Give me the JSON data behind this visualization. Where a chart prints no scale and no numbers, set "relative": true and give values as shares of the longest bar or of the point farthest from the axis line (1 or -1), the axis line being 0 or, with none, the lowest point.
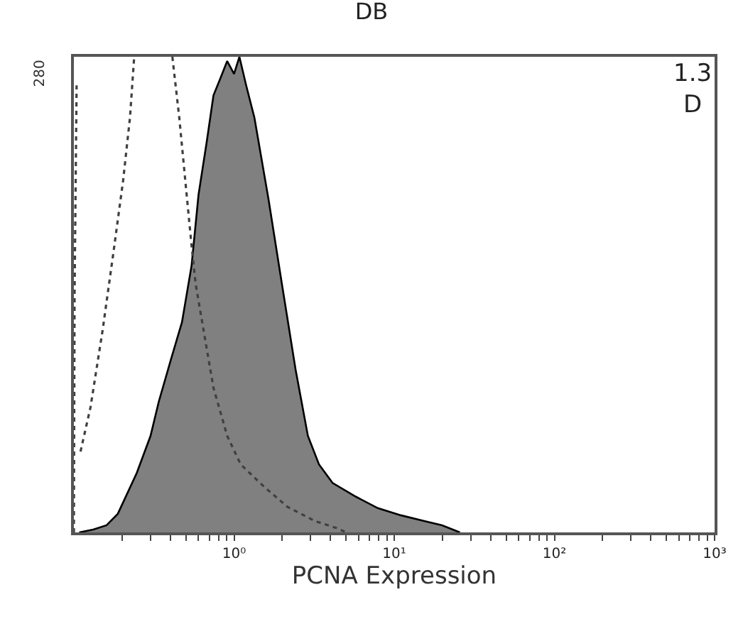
{
  "chart_data": {
    "type": "area",
    "title": "DB",
    "xlabel": "PCNA Expression",
    "relative": true,
    "log": "x",
    "annotations": [
      "280",
      "1.3\nD"
    ],
    "xlim": [
      0.1,
      1000
    ],
    "xticks": [
      {
        "value": 0.2,
        "label": null
      },
      {
        "value": 0.3,
        "label": null
      },
      {
        "value": 0.4,
        "label": null
      },
      {
        "value": 0.5,
        "label": null
      },
      {
        "value": 0.6,
        "label": null
      },
      {
        "value": 0.7,
        "label": null
      },
      {
        "value": 0.8,
        "label": null
      },
      {
        "value": 0.9,
        "label": null
      },
      {
        "value": 1,
        "label": "10⁰"
      },
      {
        "value": 2,
        "label": null
      },
      {
        "value": 3,
        "label": null
      },
      {
        "value": 4,
        "label": null
      },
      {
        "value": 5,
        "label": null
      },
      {
        "value": 6,
        "label": null
      },
      {
        "value": 7,
        "label": null
      },
      {
        "value": 8,
        "label": null
      },
      {
        "value": 9,
        "label": null
      },
      {
        "value": 10,
        "label": "10¹"
      },
      {
        "value": 20,
        "label": null
      },
      {
        "value": 30,
        "label": null
      },
      {
        "value": 40,
        "label": null
      },
      {
        "value": 50,
        "label": null
      },
      {
        "value": 60,
        "label": null
      },
      {
        "value": 70,
        "label": null
      },
      {
        "value": 80,
        "label": null
      },
      {
        "value": 90,
        "label": null
      },
      {
        "value": 100,
        "label": "10²"
      },
      {
        "value": 200,
        "label": null
      },
      {
        "value": 300,
        "label": null
      },
      {
        "value": 400,
        "label": null
      },
      {
        "value": 500,
        "label": null
      },
      {
        "value": 600,
        "label": null
      },
      {
        "value": 700,
        "label": null
      },
      {
        "value": 800,
        "label": null
      },
      {
        "value": 900,
        "label": null
      },
      {
        "value": 1000,
        "label": "10³"
      }
    ],
    "series": [
      {
        "color": "#808080",
        "x": [
          0.108,
          0.132,
          0.16,
          0.188,
          0.247,
          0.301,
          0.339,
          0.404,
          0.473,
          0.543,
          0.6,
          0.675,
          0.744,
          0.822,
          0.906,
          1.0,
          1.08,
          1.19,
          1.34,
          1.64,
          1.99,
          2.42,
          2.89,
          3.39,
          4.12,
          5.77,
          7.9,
          11.0,
          15.4,
          19.9,
          25.7
        ],
        "values": [
          0,
          0.006,
          0.015,
          0.039,
          0.125,
          0.203,
          0.275,
          0.364,
          0.442,
          0.561,
          0.71,
          0.821,
          0.919,
          0.955,
          0.991,
          0.964,
          1.0,
          0.94,
          0.872,
          0.701,
          0.522,
          0.343,
          0.203,
          0.143,
          0.104,
          0.075,
          0.051,
          0.036,
          0.024,
          0.015,
          0
        ]
      },
      {
        "type": "line",
        "line_style": "dotted",
        "color": "#404040",
        "x": [
          0.1,
          0.101,
          0.104
        ],
        "values": [
          0,
          0.5,
          0.94
        ]
      },
      {
        "type": "line",
        "line_style": "dotted",
        "color": "#404040",
        "x": [
          0.11,
          0.127,
          0.151,
          0.177,
          0.203,
          0.224,
          0.238
        ],
        "values": [
          0.17,
          0.263,
          0.424,
          0.591,
          0.74,
          0.872,
          1.0
        ]
      },
      {
        "type": "line",
        "line_style": "dotted",
        "color": "#404040",
        "x": [
          0.412,
          0.455,
          0.502,
          0.543,
          0.576,
          0.662,
          0.744,
          0.906,
          1.1,
          1.54,
          2.15,
          3.19,
          4.38,
          5.02
        ],
        "values": [
          1.0,
          0.872,
          0.722,
          0.603,
          0.522,
          0.403,
          0.304,
          0.203,
          0.143,
          0.096,
          0.054,
          0.024,
          0.009,
          0
        ]
      }
    ]
  }
}
